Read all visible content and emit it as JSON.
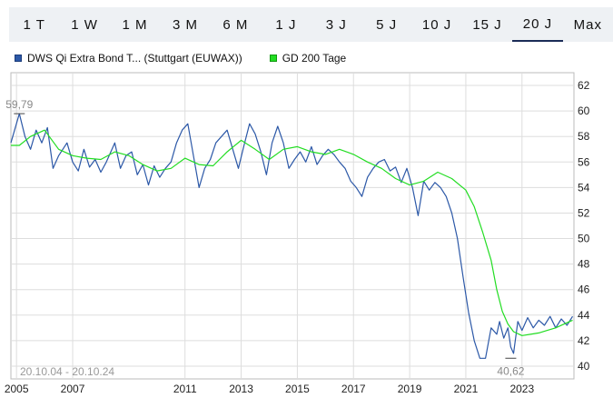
{
  "tabs": [
    {
      "label": "1 T",
      "active": false
    },
    {
      "label": "1 W",
      "active": false
    },
    {
      "label": "1 M",
      "active": false
    },
    {
      "label": "3 M",
      "active": false
    },
    {
      "label": "6 M",
      "active": false
    },
    {
      "label": "1 J",
      "active": false
    },
    {
      "label": "3 J",
      "active": false
    },
    {
      "label": "5 J",
      "active": false
    },
    {
      "label": "10 J",
      "active": false
    },
    {
      "label": "15 J",
      "active": false
    },
    {
      "label": "20 J",
      "active": true
    },
    {
      "label": "Max",
      "active": false
    }
  ],
  "legend": {
    "price_label": "DWS Qi Extra Bond T... (Stuttgart (EUWAX))",
    "avg_label": "GD 200 Tage"
  },
  "colors": {
    "price": "#2c58a7",
    "avg": "#22dd22",
    "grid": "#dddddd"
  },
  "chart_data": {
    "type": "line",
    "date_range": "20.10.04 - 20.10.24",
    "x_ticks": [
      "2005",
      "2007",
      "2011",
      "2013",
      "2015",
      "2017",
      "2019",
      "2021",
      "2023"
    ],
    "y_ticks": [
      40,
      42,
      44,
      46,
      48,
      50,
      52,
      54,
      56,
      58,
      60,
      62
    ],
    "ylim": [
      39,
      63
    ],
    "xlim": [
      2004.8,
      2024.85
    ],
    "annotations": {
      "max": {
        "label": "59,79",
        "x": 2005.1,
        "y": 59.79
      },
      "min": {
        "label": "40,62",
        "x": 2022.6,
        "y": 40.62
      }
    },
    "series": [
      {
        "name": "DWS Qi Extra Bond T... (Stuttgart (EUWAX))",
        "x": [
          2004.8,
          2005.1,
          2005.3,
          2005.5,
          2005.7,
          2005.9,
          2006.1,
          2006.3,
          2006.5,
          2006.8,
          2007.0,
          2007.2,
          2007.4,
          2007.6,
          2007.8,
          2008.0,
          2008.2,
          2008.5,
          2008.7,
          2008.9,
          2009.1,
          2009.3,
          2009.5,
          2009.7,
          2009.9,
          2010.1,
          2010.3,
          2010.5,
          2010.7,
          2010.9,
          2011.1,
          2011.3,
          2011.5,
          2011.7,
          2011.9,
          2012.1,
          2012.3,
          2012.5,
          2012.7,
          2012.9,
          2013.1,
          2013.3,
          2013.5,
          2013.7,
          2013.9,
          2014.1,
          2014.3,
          2014.5,
          2014.7,
          2014.9,
          2015.1,
          2015.3,
          2015.5,
          2015.7,
          2015.9,
          2016.1,
          2016.3,
          2016.5,
          2016.7,
          2016.9,
          2017.1,
          2017.3,
          2017.5,
          2017.7,
          2017.9,
          2018.1,
          2018.3,
          2018.5,
          2018.7,
          2018.9,
          2019.1,
          2019.3,
          2019.5,
          2019.7,
          2019.9,
          2020.1,
          2020.3,
          2020.5,
          2020.7,
          2020.9,
          2021.1,
          2021.3,
          2021.5,
          2021.7,
          2021.9,
          2022.1,
          2022.2,
          2022.35,
          2022.5,
          2022.6,
          2022.7,
          2022.85,
          2023.0,
          2023.2,
          2023.4,
          2023.6,
          2023.8,
          2024.0,
          2024.2,
          2024.4,
          2024.6,
          2024.8
        ],
        "y": [
          57.5,
          59.79,
          58.0,
          57.0,
          58.5,
          57.5,
          58.7,
          55.5,
          56.5,
          57.5,
          56.0,
          55.3,
          57.0,
          55.6,
          56.2,
          55.2,
          56.0,
          57.5,
          55.5,
          56.5,
          56.8,
          55.0,
          55.8,
          54.2,
          55.7,
          54.8,
          55.5,
          56.0,
          57.5,
          58.5,
          59.0,
          56.5,
          54.0,
          55.5,
          56.2,
          57.5,
          58.0,
          58.5,
          57.0,
          55.5,
          57.3,
          59.0,
          58.2,
          56.8,
          55.0,
          57.5,
          58.8,
          57.5,
          55.5,
          56.2,
          56.8,
          56.0,
          57.2,
          55.8,
          56.5,
          57.0,
          56.6,
          56.0,
          55.5,
          54.5,
          54.0,
          53.3,
          54.8,
          55.5,
          56.0,
          56.2,
          55.3,
          55.6,
          54.4,
          55.5,
          54.0,
          51.8,
          54.5,
          53.8,
          54.4,
          54.0,
          53.3,
          52.0,
          50.0,
          47.0,
          44.2,
          42.0,
          40.62,
          40.62,
          43.0,
          42.5,
          43.5,
          42.2,
          43.0,
          41.5,
          41.0,
          43.5,
          42.8,
          43.8,
          43.0,
          43.6,
          43.2,
          43.9,
          43.0,
          43.7,
          43.2,
          43.9
        ]
      },
      {
        "name": "GD 200 Tage",
        "x": [
          2004.8,
          2005.1,
          2005.5,
          2006.0,
          2006.5,
          2007.0,
          2007.5,
          2008.0,
          2008.5,
          2009.0,
          2009.5,
          2010.0,
          2010.5,
          2011.0,
          2011.5,
          2012.0,
          2012.5,
          2013.0,
          2013.5,
          2014.0,
          2014.5,
          2015.0,
          2015.5,
          2016.0,
          2016.5,
          2017.0,
          2017.5,
          2018.0,
          2018.5,
          2019.0,
          2019.5,
          2020.0,
          2020.5,
          2021.0,
          2021.3,
          2021.6,
          2021.9,
          2022.1,
          2022.3,
          2022.5,
          2022.7,
          2023.0,
          2023.3,
          2023.6,
          2023.9,
          2024.2,
          2024.5,
          2024.8
        ],
        "y": [
          57.3,
          57.3,
          58.0,
          58.5,
          57.0,
          56.5,
          56.3,
          56.2,
          56.8,
          56.5,
          55.8,
          55.3,
          55.5,
          56.3,
          55.8,
          55.7,
          56.8,
          57.7,
          57.0,
          56.2,
          57.0,
          57.2,
          56.8,
          56.6,
          57.0,
          56.6,
          56.0,
          55.5,
          54.7,
          54.2,
          54.5,
          55.2,
          54.7,
          53.8,
          52.5,
          50.5,
          48.3,
          46.0,
          44.3,
          43.3,
          42.7,
          42.4,
          42.5,
          42.6,
          42.8,
          43.0,
          43.3,
          43.6
        ]
      }
    ]
  }
}
